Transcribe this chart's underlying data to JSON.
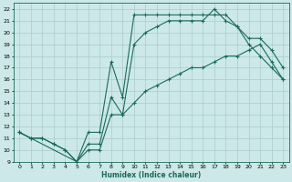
{
  "xlabel": "Humidex (Indice chaleur)",
  "ylabel": "",
  "bg_color": "#cce8e8",
  "grid_color": "#aacccc",
  "line_color": "#1a6b5a",
  "xlim": [
    -0.5,
    23.5
  ],
  "ylim": [
    9,
    22.5
  ],
  "xticks": [
    0,
    1,
    2,
    3,
    4,
    5,
    6,
    7,
    8,
    9,
    10,
    11,
    12,
    13,
    14,
    15,
    16,
    17,
    18,
    19,
    20,
    21,
    22,
    23
  ],
  "yticks": [
    9,
    10,
    11,
    12,
    13,
    14,
    15,
    16,
    17,
    18,
    19,
    20,
    21,
    22
  ],
  "line1_x": [
    0,
    1,
    2,
    3,
    4,
    5,
    6,
    7,
    8,
    9,
    10,
    11,
    12,
    13,
    14,
    15,
    16,
    17,
    18,
    19,
    20,
    21,
    22,
    23
  ],
  "line1_y": [
    11.5,
    11.0,
    11.0,
    10.5,
    10.0,
    9.0,
    10.5,
    10.5,
    14.5,
    13.0,
    19.0,
    20.0,
    20.5,
    21.0,
    21.0,
    21.0,
    21.0,
    22.0,
    21.0,
    20.5,
    19.0,
    18.0,
    17.0,
    16.0
  ],
  "line2_x": [
    0,
    5,
    6,
    7,
    8,
    9,
    10,
    11,
    12,
    13,
    14,
    15,
    16,
    17,
    18,
    19,
    20,
    21,
    22,
    23
  ],
  "line2_y": [
    11.5,
    9.0,
    11.5,
    11.5,
    17.5,
    14.5,
    21.5,
    21.5,
    21.5,
    21.5,
    21.5,
    21.5,
    21.5,
    21.5,
    21.5,
    20.5,
    19.5,
    19.5,
    18.5,
    17.0
  ],
  "line3_x": [
    0,
    1,
    2,
    3,
    4,
    5,
    6,
    7,
    8,
    9,
    10,
    11,
    12,
    13,
    14,
    15,
    16,
    17,
    18,
    19,
    20,
    21,
    22,
    23
  ],
  "line3_y": [
    11.5,
    11.0,
    11.0,
    10.5,
    10.0,
    9.0,
    10.0,
    10.0,
    13.0,
    13.0,
    14.0,
    15.0,
    15.5,
    16.0,
    16.5,
    17.0,
    17.0,
    17.5,
    18.0,
    18.0,
    18.5,
    19.0,
    17.5,
    16.0
  ]
}
